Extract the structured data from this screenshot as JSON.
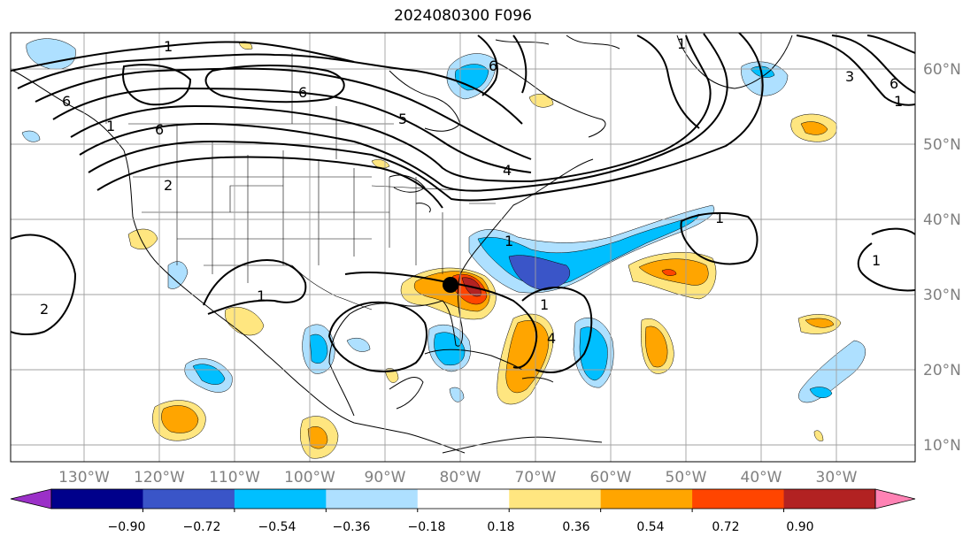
{
  "title": "2024080300 F096",
  "lon_labels": [
    "130°W",
    "120°W",
    "110°W",
    "100°W",
    "90°W",
    "80°W",
    "70°W",
    "60°W",
    "50°W",
    "40°W",
    "30°W"
  ],
  "lat_labels": [
    "60°N",
    "50°N",
    "40°N",
    "30°N",
    "20°N",
    "10°N"
  ],
  "colorbar": {
    "ticks": [
      "−0.90",
      "−0.72",
      "−0.54",
      "−0.36",
      "−0.18",
      "0.18",
      "0.36",
      "0.54",
      "0.72",
      "0.90"
    ],
    "colors": [
      "#9b30c8",
      "#00008b",
      "#3a55c8",
      "#00bfff",
      "#aee0ff",
      "#ffffff",
      "#ffe680",
      "#ffa500",
      "#ff4500",
      "#b22222",
      "#ff82b4"
    ]
  },
  "contour_labels": [
    "1",
    "6",
    "6",
    "5",
    "4",
    "2",
    "1",
    "2",
    "1",
    "1",
    "1",
    "6",
    "3",
    "6",
    "1",
    "1",
    "6",
    "4",
    "1",
    "1"
  ],
  "storm_marker": "black-dot"
}
